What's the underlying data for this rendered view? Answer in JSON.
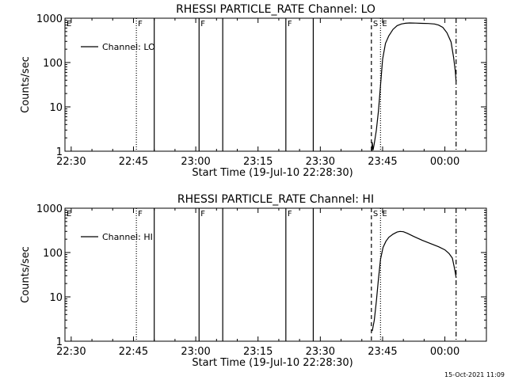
{
  "footer": {
    "timestamp": "15-Oct-2021 11:09"
  },
  "chart_data": [
    {
      "type": "line",
      "title": "RHESSI PARTICLE_RATE Channel: LO",
      "xlabel": "Start Time (19-Jul-10 22:28:30)",
      "ylabel": "Counts/sec",
      "ylog": true,
      "xlim_minutes": [
        0,
        101.5
      ],
      "ylim": [
        1,
        1000
      ],
      "x_ticks": [
        {
          "m": 1.5,
          "label": "22:30"
        },
        {
          "m": 16.5,
          "label": "22:45"
        },
        {
          "m": 31.5,
          "label": "23:00"
        },
        {
          "m": 46.5,
          "label": "23:15"
        },
        {
          "m": 61.5,
          "label": "23:30"
        },
        {
          "m": 76.5,
          "label": "23:45"
        },
        {
          "m": 91.5,
          "label": "00:00"
        }
      ],
      "y_ticks": [
        {
          "v": 1,
          "label": "1"
        },
        {
          "v": 10,
          "label": "10"
        },
        {
          "v": 100,
          "label": "100"
        },
        {
          "v": 1000,
          "label": "1000"
        }
      ],
      "legend": {
        "label": "Channel: LO",
        "position": "top-left"
      },
      "markers": [
        {
          "m": 0,
          "style": "dotted",
          "letter": "E"
        },
        {
          "m": 17.2,
          "style": "dotted",
          "letter": "F"
        },
        {
          "m": 21.5,
          "style": "solid",
          "letter": ""
        },
        {
          "m": 32.3,
          "style": "solid",
          "letter": "F"
        },
        {
          "m": 38.0,
          "style": "solid",
          "letter": ""
        },
        {
          "m": 53.2,
          "style": "solid",
          "letter": "F"
        },
        {
          "m": 59.8,
          "style": "solid",
          "letter": ""
        },
        {
          "m": 73.8,
          "style": "dashed",
          "letter": "S"
        },
        {
          "m": 76.0,
          "style": "dotted",
          "letter": "E"
        },
        {
          "m": 94.2,
          "style": "dashdot",
          "letter": ""
        }
      ],
      "series": [
        {
          "name": "Channel: LO",
          "points": [
            [
              73.9,
              1.0
            ],
            [
              74.0,
              1.6
            ],
            [
              74.2,
              1.05
            ],
            [
              74.5,
              1.5
            ],
            [
              75.0,
              3
            ],
            [
              75.5,
              8
            ],
            [
              76.0,
              30
            ],
            [
              76.5,
              120
            ],
            [
              77.2,
              270
            ],
            [
              78.0,
              400
            ],
            [
              79.0,
              560
            ],
            [
              80.0,
              680
            ],
            [
              81.0,
              740
            ],
            [
              82.0,
              770
            ],
            [
              83.0,
              780
            ],
            [
              84.5,
              775
            ],
            [
              86.0,
              765
            ],
            [
              87.5,
              760
            ],
            [
              89.0,
              740
            ],
            [
              90.0,
              700
            ],
            [
              91.0,
              620
            ],
            [
              92.0,
              470
            ],
            [
              93.0,
              290
            ],
            [
              93.6,
              130
            ],
            [
              94.0,
              65
            ],
            [
              94.2,
              38
            ]
          ]
        }
      ]
    },
    {
      "type": "line",
      "title": "RHESSI PARTICLE_RATE Channel: HI",
      "xlabel": "Start Time (19-Jul-10 22:28:30)",
      "ylabel": "Counts/sec",
      "ylog": true,
      "xlim_minutes": [
        0,
        101.5
      ],
      "ylim": [
        1,
        1000
      ],
      "x_ticks": [
        {
          "m": 1.5,
          "label": "22:30"
        },
        {
          "m": 16.5,
          "label": "22:45"
        },
        {
          "m": 31.5,
          "label": "23:00"
        },
        {
          "m": 46.5,
          "label": "23:15"
        },
        {
          "m": 61.5,
          "label": "23:30"
        },
        {
          "m": 76.5,
          "label": "23:45"
        },
        {
          "m": 91.5,
          "label": "00:00"
        }
      ],
      "y_ticks": [
        {
          "v": 1,
          "label": "1"
        },
        {
          "v": 10,
          "label": "10"
        },
        {
          "v": 100,
          "label": "100"
        },
        {
          "v": 1000,
          "label": "1000"
        }
      ],
      "legend": {
        "label": "Channel: HI",
        "position": "top-left"
      },
      "markers": [
        {
          "m": 0,
          "style": "dotted",
          "letter": "E"
        },
        {
          "m": 17.2,
          "style": "dotted",
          "letter": "F"
        },
        {
          "m": 21.5,
          "style": "solid",
          "letter": ""
        },
        {
          "m": 32.3,
          "style": "solid",
          "letter": "F"
        },
        {
          "m": 38.0,
          "style": "solid",
          "letter": ""
        },
        {
          "m": 53.2,
          "style": "solid",
          "letter": "F"
        },
        {
          "m": 59.8,
          "style": "solid",
          "letter": ""
        },
        {
          "m": 73.8,
          "style": "dashed",
          "letter": "S"
        },
        {
          "m": 76.0,
          "style": "dotted",
          "letter": "E"
        },
        {
          "m": 94.2,
          "style": "dashdot",
          "letter": ""
        }
      ],
      "series": [
        {
          "name": "Channel: HI",
          "points": [
            [
              74.0,
              1.7
            ],
            [
              74.5,
              3
            ],
            [
              75.0,
              8
            ],
            [
              75.5,
              25
            ],
            [
              76.0,
              70
            ],
            [
              76.6,
              130
            ],
            [
              77.3,
              180
            ],
            [
              78.0,
              220
            ],
            [
              79.0,
              260
            ],
            [
              80.0,
              290
            ],
            [
              80.7,
              300
            ],
            [
              81.5,
              295
            ],
            [
              82.5,
              270
            ],
            [
              84.0,
              230
            ],
            [
              86.0,
              190
            ],
            [
              88.0,
              160
            ],
            [
              90.0,
              135
            ],
            [
              91.5,
              115
            ],
            [
              92.5,
              95
            ],
            [
              93.3,
              75
            ],
            [
              93.8,
              45
            ],
            [
              94.2,
              28
            ]
          ]
        }
      ]
    }
  ]
}
